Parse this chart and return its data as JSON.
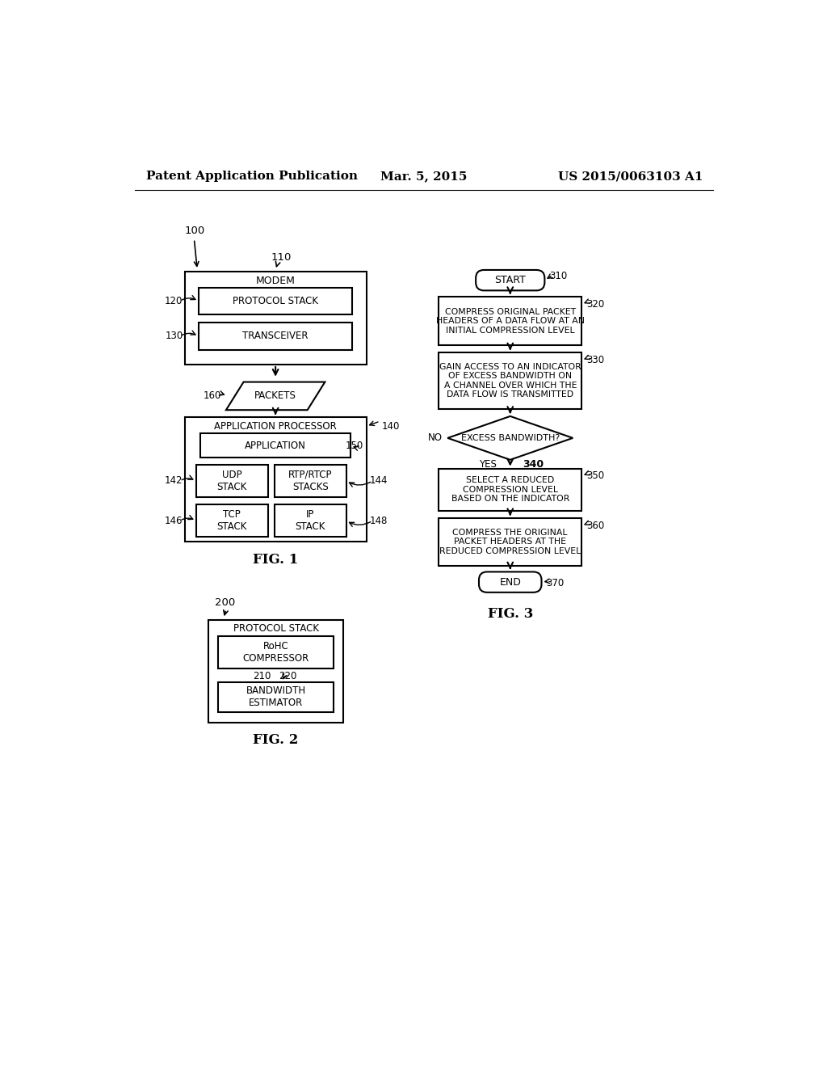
{
  "bg_color": "#ffffff",
  "header_left": "Patent Application Publication",
  "header_center": "Mar. 5, 2015",
  "header_right": "US 2015/0063103 A1"
}
